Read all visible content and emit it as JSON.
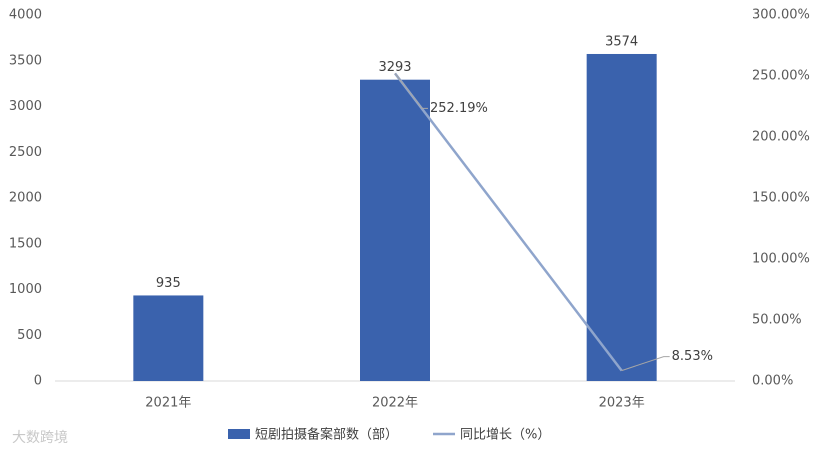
{
  "chart_data": {
    "type": "bar",
    "categories": [
      "2021年",
      "2022年",
      "2023年"
    ],
    "series": [
      {
        "name": "短剧拍摄备案部数（部）",
        "type": "bar",
        "color": "#3a62ad",
        "values": [
          935,
          3293,
          3574
        ]
      },
      {
        "name": "同比增长（%）",
        "type": "line",
        "axis": "y2",
        "color": "#8fa5cc",
        "values": [
          null,
          252.19,
          8.53
        ],
        "value_labels": [
          null,
          "252.19%",
          "8.53%"
        ]
      }
    ],
    "ylim": [
      0,
      4000
    ],
    "yticks": [
      0,
      500,
      1000,
      1500,
      2000,
      2500,
      3000,
      3500,
      4000
    ],
    "y2lim": [
      0,
      300
    ],
    "y2ticks": [
      {
        "value": 0,
        "label": "0.00%"
      },
      {
        "value": 50,
        "label": "50.00%"
      },
      {
        "value": 100,
        "label": "100.00%"
      },
      {
        "value": 150,
        "label": "150.00%"
      },
      {
        "value": 200,
        "label": "200.00%"
      },
      {
        "value": 250,
        "label": "250.00%"
      },
      {
        "value": 300,
        "label": "300.00%"
      }
    ],
    "grid": false,
    "legend": "bottom",
    "watermark": "大数跨境"
  }
}
